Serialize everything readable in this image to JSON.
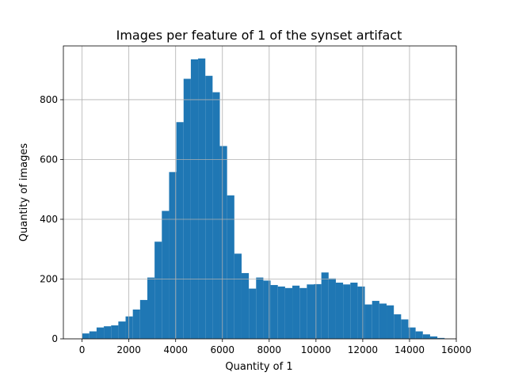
{
  "chart_data": {
    "type": "bar",
    "subtype": "histogram",
    "title": "Images per feature of 1 of the synset artifact",
    "xlabel": "Quantity of 1",
    "ylabel": "Quantity of images",
    "xlim": [
      -800,
      16000
    ],
    "ylim": [
      0,
      980
    ],
    "xticks": [
      0,
      2000,
      4000,
      6000,
      8000,
      10000,
      12000,
      14000,
      16000
    ],
    "yticks": [
      0,
      200,
      400,
      600,
      800
    ],
    "grid": true,
    "bin_start": 0,
    "bin_width": 310,
    "values": [
      18,
      25,
      38,
      42,
      45,
      58,
      75,
      98,
      130,
      205,
      325,
      428,
      558,
      725,
      870,
      935,
      938,
      880,
      825,
      645,
      480,
      285,
      220,
      168,
      205,
      195,
      180,
      175,
      170,
      178,
      170,
      182,
      183,
      222,
      202,
      188,
      182,
      188,
      175,
      115,
      127,
      118,
      112,
      82,
      65,
      38,
      25,
      15,
      8,
      3
    ],
    "bar_color": "#1f77b4"
  }
}
